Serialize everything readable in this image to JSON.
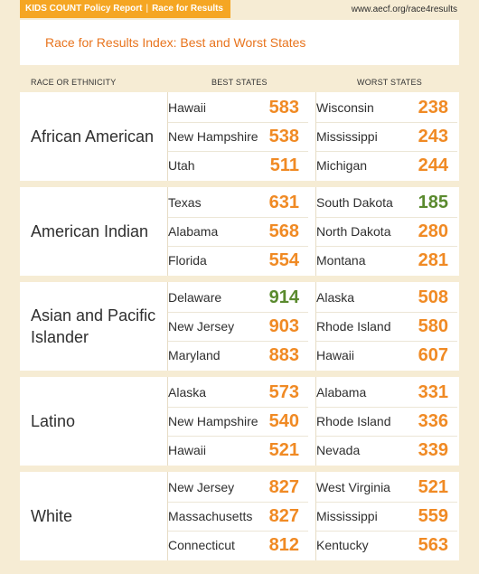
{
  "header": {
    "report_label": "KIDS COUNT Policy Report",
    "report_section": "Race for Results",
    "url": "www.aecf.org/race4results"
  },
  "title": "Race for Results Index: Best and Worst States",
  "columns": {
    "race": "RACE OR ETHNICITY",
    "best": "BEST STATES",
    "worst": "WORST STATES"
  },
  "colors": {
    "orange": "#f08a24",
    "green": "#5a8a2e",
    "accent_bar": "#f5a623"
  },
  "groups": [
    {
      "name": "African American",
      "best": [
        {
          "state": "Hawaii",
          "score": "583",
          "color": "#f08a24"
        },
        {
          "state": "New Hampshire",
          "score": "538",
          "color": "#f08a24"
        },
        {
          "state": "Utah",
          "score": "511",
          "color": "#f08a24"
        }
      ],
      "worst": [
        {
          "state": "Wisconsin",
          "score": "238",
          "color": "#f08a24"
        },
        {
          "state": "Mississippi",
          "score": "243",
          "color": "#f08a24"
        },
        {
          "state": "Michigan",
          "score": "244",
          "color": "#f08a24"
        }
      ]
    },
    {
      "name": "American Indian",
      "best": [
        {
          "state": "Texas",
          "score": "631",
          "color": "#f08a24"
        },
        {
          "state": "Alabama",
          "score": "568",
          "color": "#f08a24"
        },
        {
          "state": "Florida",
          "score": "554",
          "color": "#f08a24"
        }
      ],
      "worst": [
        {
          "state": "South Dakota",
          "score": "185",
          "color": "#5a8a2e"
        },
        {
          "state": "North Dakota",
          "score": "280",
          "color": "#f08a24"
        },
        {
          "state": "Montana",
          "score": "281",
          "color": "#f08a24"
        }
      ]
    },
    {
      "name": "Asian and Pacific Islander",
      "best": [
        {
          "state": "Delaware",
          "score": "914",
          "color": "#5a8a2e"
        },
        {
          "state": "New Jersey",
          "score": "903",
          "color": "#f08a24"
        },
        {
          "state": "Maryland",
          "score": "883",
          "color": "#f08a24"
        }
      ],
      "worst": [
        {
          "state": "Alaska",
          "score": "508",
          "color": "#f08a24"
        },
        {
          "state": "Rhode Island",
          "score": "580",
          "color": "#f08a24"
        },
        {
          "state": "Hawaii",
          "score": "607",
          "color": "#f08a24"
        }
      ]
    },
    {
      "name": "Latino",
      "best": [
        {
          "state": "Alaska",
          "score": "573",
          "color": "#f08a24"
        },
        {
          "state": "New Hampshire",
          "score": "540",
          "color": "#f08a24"
        },
        {
          "state": "Hawaii",
          "score": "521",
          "color": "#f08a24"
        }
      ],
      "worst": [
        {
          "state": "Alabama",
          "score": "331",
          "color": "#f08a24"
        },
        {
          "state": "Rhode Island",
          "score": "336",
          "color": "#f08a24"
        },
        {
          "state": "Nevada",
          "score": "339",
          "color": "#f08a24"
        }
      ]
    },
    {
      "name": "White",
      "best": [
        {
          "state": "New Jersey",
          "score": "827",
          "color": "#f08a24"
        },
        {
          "state": "Massachusetts",
          "score": "827",
          "color": "#f08a24"
        },
        {
          "state": "Connecticut",
          "score": "812",
          "color": "#f08a24"
        }
      ],
      "worst": [
        {
          "state": "West Virginia",
          "score": "521",
          "color": "#f08a24"
        },
        {
          "state": "Mississippi",
          "score": "559",
          "color": "#f08a24"
        },
        {
          "state": "Kentucky",
          "score": "563",
          "color": "#f08a24"
        }
      ]
    }
  ]
}
